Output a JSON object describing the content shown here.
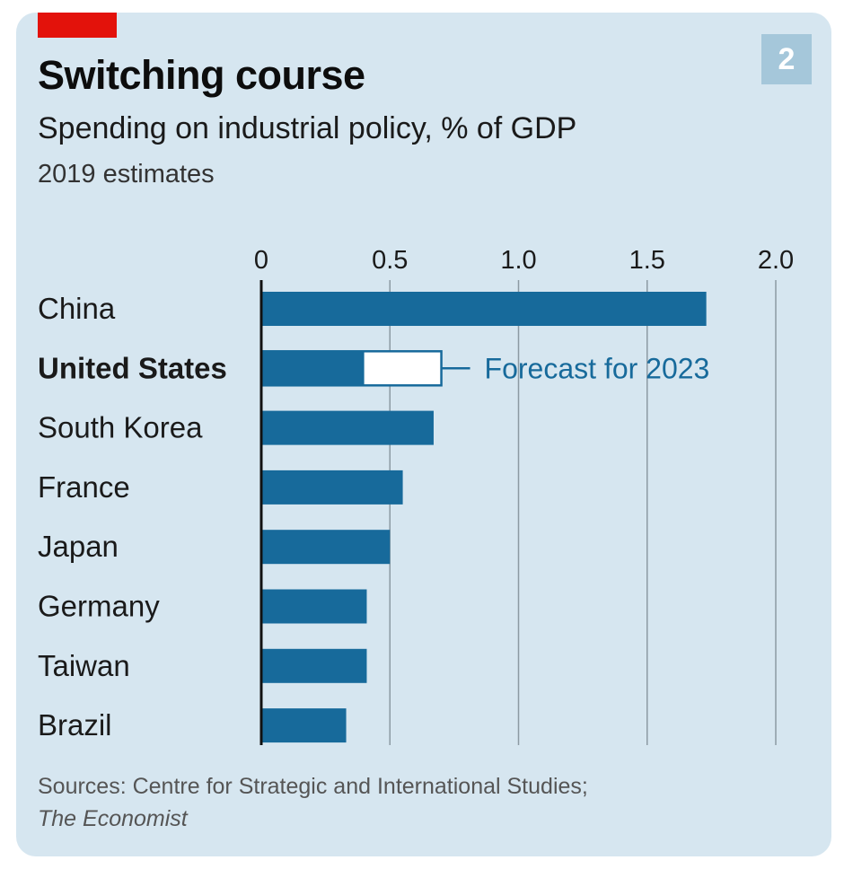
{
  "header": {
    "title": "Switching course",
    "subtitle": "Spending on industrial policy, % of GDP",
    "note": "2019 estimates",
    "figure_number": "2"
  },
  "footer": {
    "source_text": "Sources: Centre for Strategic and International Studies;",
    "source_publication": "The Economist"
  },
  "colors": {
    "bar": "#176a9b",
    "background": "#d6e6f0",
    "accent_red": "#e3120b",
    "gridline": "#8c9aa3"
  },
  "chart_data": {
    "type": "bar",
    "orientation": "horizontal",
    "title": "Switching course",
    "subtitle": "Spending on industrial policy, % of GDP",
    "xlabel": "",
    "ylabel": "",
    "xlim": [
      0,
      2.0
    ],
    "x_ticks": [
      "0",
      "0.5",
      "1.0",
      "1.5",
      "2.0"
    ],
    "x_tick_values": [
      0,
      0.5,
      1.0,
      1.5,
      2.0
    ],
    "grid": true,
    "categories": [
      "China",
      "United States",
      "South Korea",
      "France",
      "Japan",
      "Germany",
      "Taiwan",
      "Brazil"
    ],
    "highlight_category": "United States",
    "series": [
      {
        "name": "2019 estimates",
        "values": [
          1.73,
          0.4,
          0.67,
          0.55,
          0.5,
          0.41,
          0.41,
          0.33
        ]
      },
      {
        "name": "Forecast for 2023",
        "values": [
          null,
          0.7,
          null,
          null,
          null,
          null,
          null,
          null
        ]
      }
    ],
    "annotation": {
      "category": "United States",
      "text": "Forecast for 2023"
    }
  }
}
